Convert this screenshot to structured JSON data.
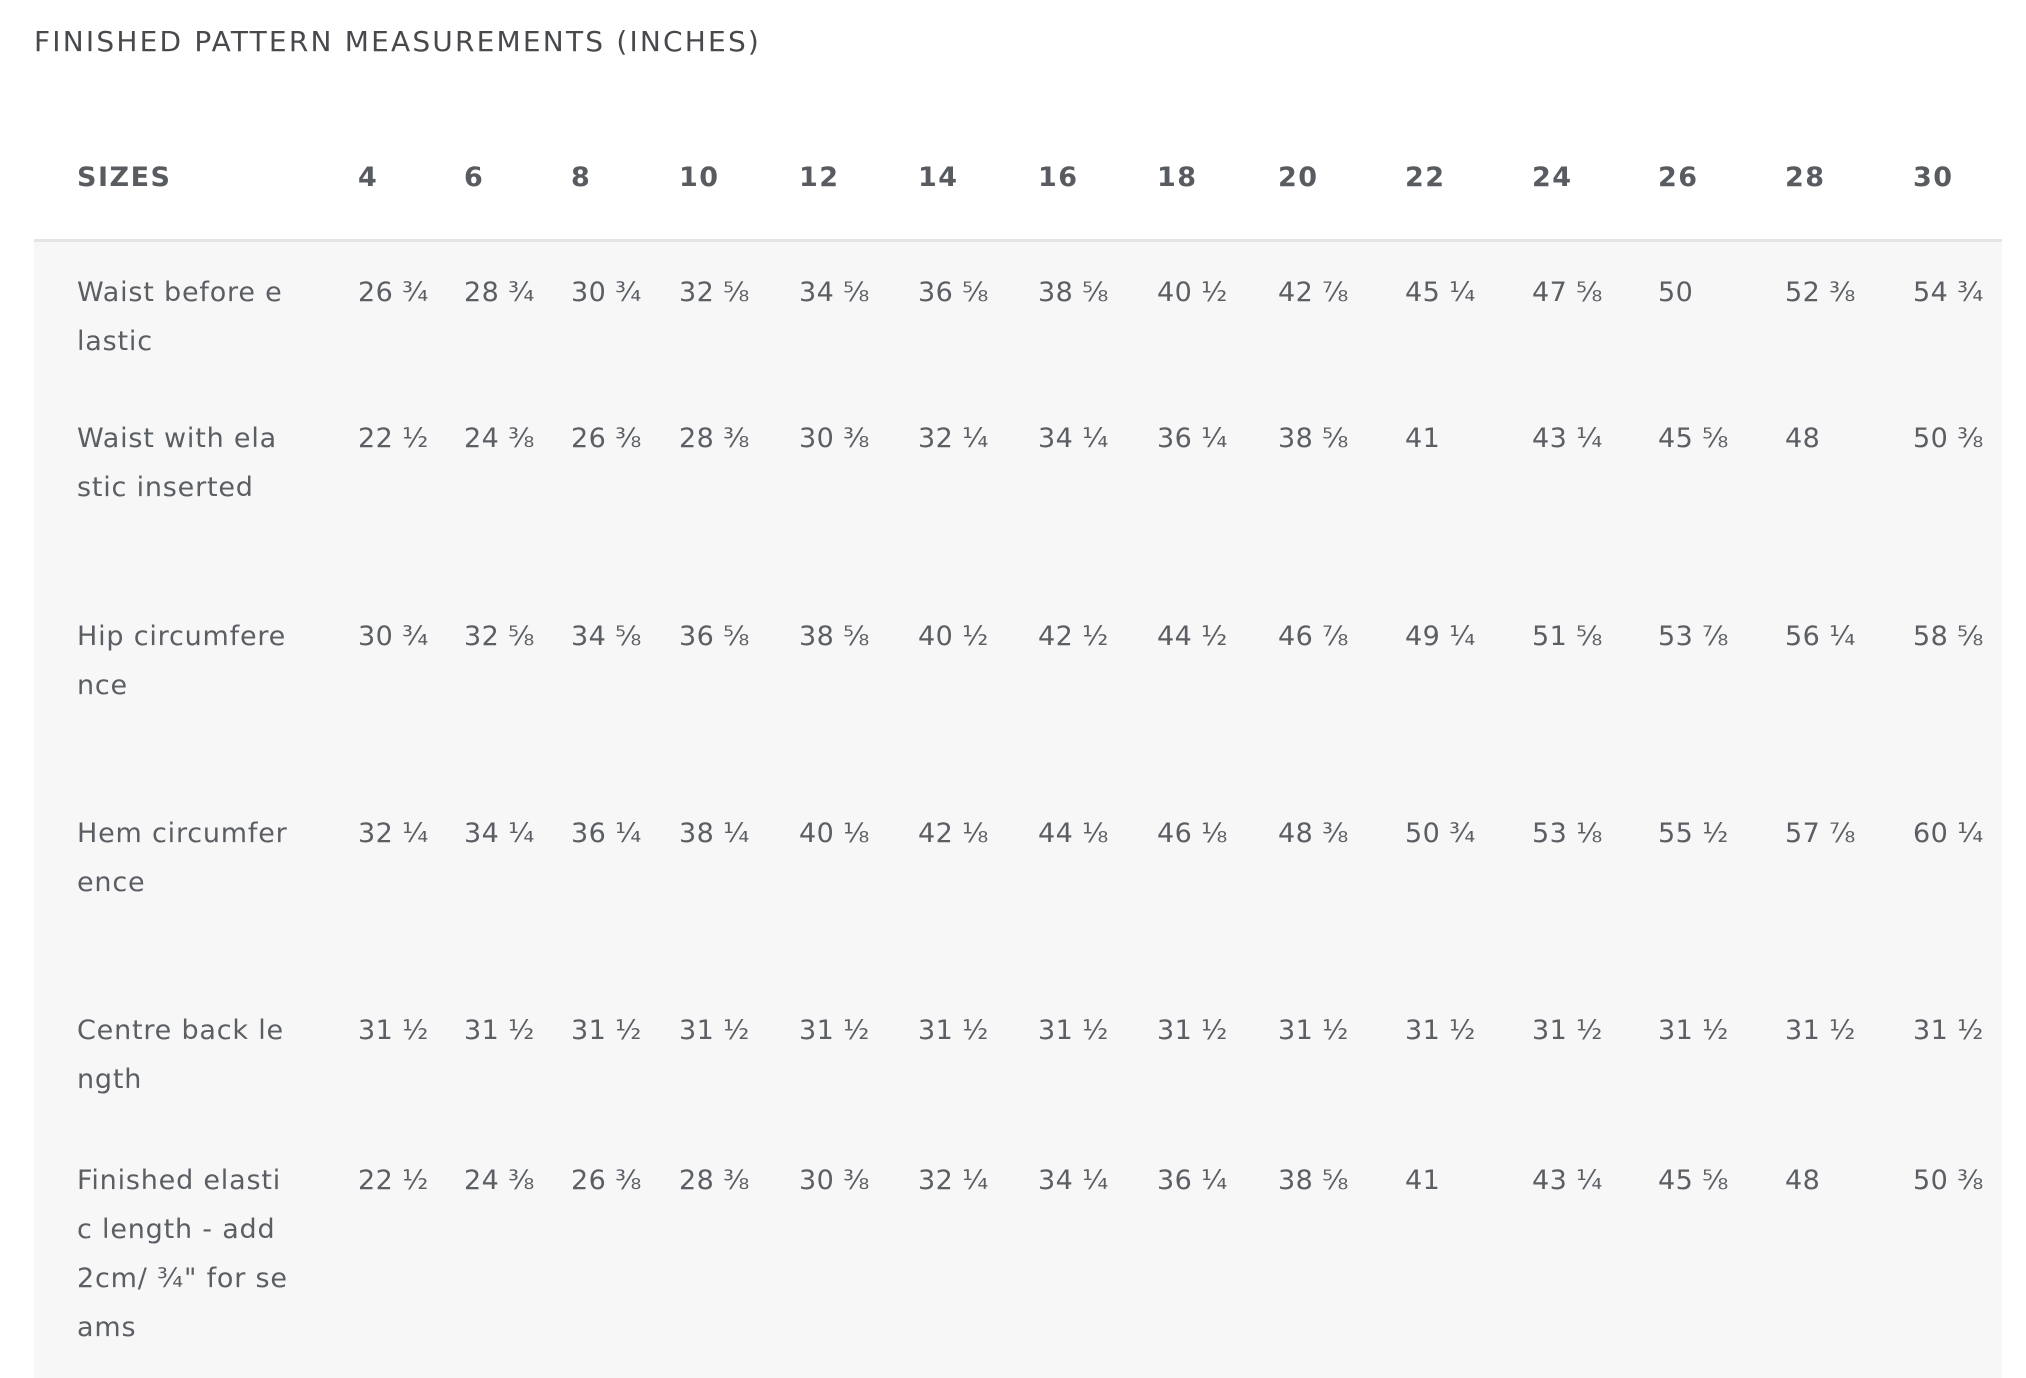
{
  "title": "FINISHED PATTERN MEASUREMENTS (INCHES)",
  "table": {
    "header": {
      "label": "SIZES",
      "sizes": [
        "4",
        "6",
        "8",
        "10",
        "12",
        "14",
        "16",
        "18",
        "20",
        "22",
        "24",
        "26",
        "28",
        "30"
      ]
    },
    "rows": [
      {
        "label": "Waist before elastic",
        "values": [
          "26 ¾",
          "28 ¾",
          "30 ¾",
          "32 ⅝",
          "34 ⅝",
          "36 ⅝",
          "38 ⅝",
          "40 ½",
          "42 ⅞",
          "45 ¼",
          "47 ⅝",
          "50",
          "52 ⅜",
          "54 ¾"
        ]
      },
      {
        "label": "Waist with elastic inserted",
        "values": [
          "22 ½",
          "24 ⅜",
          "26 ⅜",
          "28 ⅜",
          "30 ⅜",
          "32 ¼",
          "34 ¼",
          "36 ¼",
          "38 ⅝",
          "41",
          "43 ¼",
          "45 ⅝",
          "48",
          "50 ⅜"
        ]
      },
      {
        "label": "Hip circumference",
        "values": [
          "30 ¾",
          "32 ⅝",
          "34 ⅝",
          "36 ⅝",
          "38 ⅝",
          "40 ½",
          "42 ½",
          "44 ½",
          "46 ⅞",
          "49 ¼",
          "51 ⅝",
          "53 ⅞",
          "56 ¼",
          "58 ⅝"
        ]
      },
      {
        "label": "Hem circumference",
        "values": [
          "32 ¼",
          "34 ¼",
          "36 ¼",
          "38 ¼",
          "40 ⅛",
          "42 ⅛",
          "44 ⅛",
          "46 ⅛",
          "48 ⅜",
          "50 ¾",
          "53 ⅛",
          "55 ½",
          "57 ⅞",
          "60 ¼"
        ]
      },
      {
        "label": "Centre back length",
        "values": [
          "31 ½",
          "31 ½",
          "31 ½",
          "31 ½",
          "31 ½",
          "31 ½",
          "31 ½",
          "31 ½",
          "31 ½",
          "31 ½",
          "31 ½",
          "31 ½",
          "31 ½",
          "31 ½"
        ]
      },
      {
        "label": "Finished elastic length - add 2cm/ ¾\" for seams",
        "values": [
          "22 ½",
          "24 ⅜",
          "26 ⅜",
          "28 ⅜",
          "30 ⅜",
          "32 ¼",
          "34 ¼",
          "36 ¼",
          "38 ⅝",
          "41",
          "43 ¼",
          "45 ⅝",
          "48",
          "50 ⅜"
        ]
      }
    ]
  }
}
